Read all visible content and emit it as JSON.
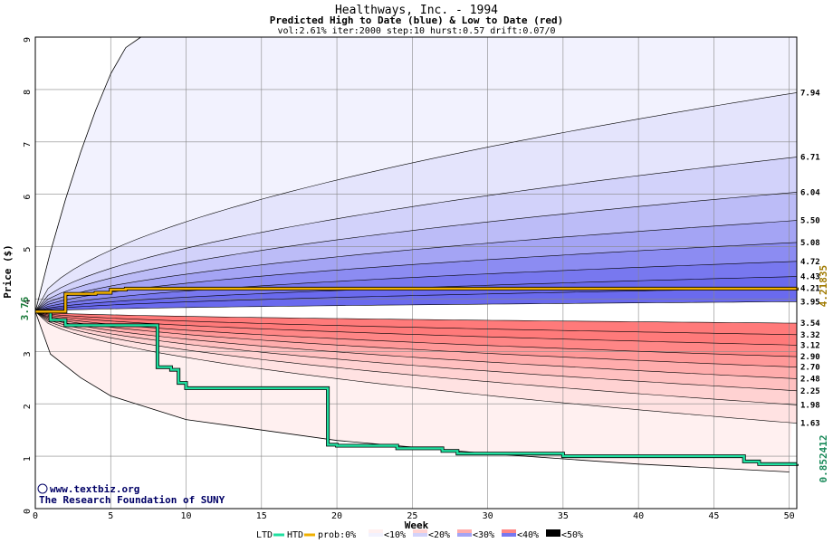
{
  "chart_data": {
    "type": "area",
    "title": "Healthways, Inc. - 1994",
    "subtitle": "Predicted High to Date (blue) &  Low to Date (red)",
    "params": "vol:2.61% iter:2000 step:10 hurst:0.57 drift:0.07/0",
    "xlabel": "Week",
    "ylabel": "Price ($)",
    "xlim": [
      0,
      50.5
    ],
    "ylim": [
      0,
      9
    ],
    "xticks": [
      0,
      5,
      10,
      15,
      20,
      25,
      30,
      35,
      40,
      45,
      50
    ],
    "yticks": [
      0,
      1,
      2,
      3,
      4,
      5,
      6,
      7,
      8,
      9
    ],
    "grid": true,
    "start_price": 3.76,
    "start_label": "3.76",
    "high_to_date_final": 4.21835,
    "high_label": "4.21835",
    "low_to_date_final": 0.852412,
    "low_label": "0.852412",
    "high_band_ends": [
      7.94,
      6.71,
      6.04,
      5.5,
      5.08,
      4.72,
      4.43,
      4.21,
      3.95
    ],
    "high_band_labels": [
      "7.94",
      "6.71",
      "6.04",
      "5.50",
      "5.08",
      "4.72",
      "4.43",
      "4.21",
      "3.95"
    ],
    "low_band_ends": [
      3.54,
      3.32,
      3.12,
      2.9,
      2.7,
      2.48,
      2.25,
      1.98,
      1.63
    ],
    "low_band_labels": [
      "3.54",
      "3.32",
      "3.12",
      "2.90",
      "2.70",
      "2.48",
      "2.25",
      "1.98",
      "1.63"
    ],
    "outer_high_curve": [
      [
        0,
        3.76
      ],
      [
        1,
        4.9
      ],
      [
        2,
        5.9
      ],
      [
        3,
        6.8
      ],
      [
        4,
        7.6
      ],
      [
        5,
        8.3
      ],
      [
        6,
        8.8
      ],
      [
        7,
        9.0
      ]
    ],
    "outer_low_curve": [
      [
        0,
        3.76
      ],
      [
        1,
        2.95
      ],
      [
        3,
        2.5
      ],
      [
        5,
        2.15
      ],
      [
        10,
        1.7
      ],
      [
        20,
        1.3
      ],
      [
        30,
        1.05
      ],
      [
        40,
        0.85
      ],
      [
        50,
        0.7
      ]
    ],
    "high_to_date": [
      [
        0,
        3.76
      ],
      [
        1.5,
        3.76
      ],
      [
        2,
        4.1
      ],
      [
        4,
        4.12
      ],
      [
        5,
        4.18
      ],
      [
        6,
        4.2
      ],
      [
        50.5,
        4.21835
      ]
    ],
    "low_to_date": [
      [
        0,
        3.76
      ],
      [
        1,
        3.6
      ],
      [
        2,
        3.5
      ],
      [
        8,
        3.5
      ],
      [
        8.1,
        2.7
      ],
      [
        9,
        2.65
      ],
      [
        9.5,
        2.4
      ],
      [
        10,
        2.3
      ],
      [
        19,
        2.3
      ],
      [
        19.4,
        1.22
      ],
      [
        20,
        1.2
      ],
      [
        24,
        1.15
      ],
      [
        27,
        1.1
      ],
      [
        28,
        1.05
      ],
      [
        35,
        1.0
      ],
      [
        46,
        1.0
      ],
      [
        47,
        0.9
      ],
      [
        48,
        0.85
      ],
      [
        50.5,
        0.852412
      ]
    ],
    "legend": {
      "position": "bottom",
      "ltd_label": "LTD",
      "htd_label": "HTD",
      "prob_label": "prob:0%",
      "buckets": [
        "<10%",
        "<20%",
        "<30%",
        "<40%",
        "<50%"
      ]
    },
    "watermark": "www.textbiz.org",
    "footer": "The Research Foundation of SUNY"
  },
  "colors": {
    "blue_bands": [
      "#f2f2fe",
      "#e4e4fc",
      "#d2d2fa",
      "#bcbcf7",
      "#a4a4f4",
      "#8c8cf2",
      "#7878ef",
      "#6a6aee"
    ],
    "red_bands": [
      "#fff0f0",
      "#ffe2e2",
      "#ffd2d2",
      "#ffc0c0",
      "#ffacac",
      "#ff9898",
      "#ff8686",
      "#ff7a7a"
    ],
    "htd_line": "#f0b000",
    "ltd_line": "#20e0a0",
    "grid": "#888888"
  }
}
